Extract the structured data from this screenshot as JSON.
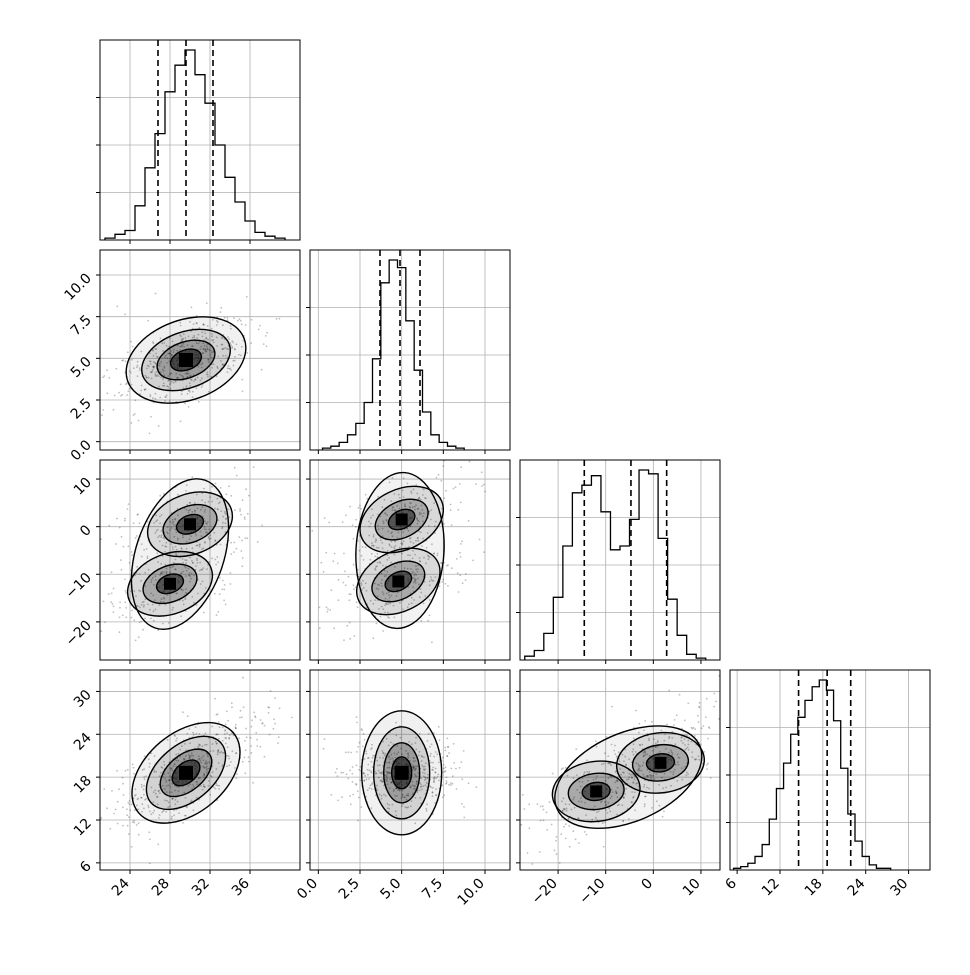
{
  "chart_data": {
    "type": "corner",
    "variables": [
      {
        "range": [
          21,
          41
        ],
        "ticks": [
          24,
          28,
          32,
          36
        ],
        "tick_labels": [
          "24",
          "28",
          "32",
          "36"
        ],
        "quantiles": [
          26.8,
          29.6,
          32.3
        ],
        "hist_bins": [
          22,
          23,
          24,
          25,
          26,
          27,
          28,
          29,
          30,
          31,
          32,
          33,
          34,
          35,
          36,
          37,
          38,
          39
        ],
        "hist_values": [
          0.01,
          0.03,
          0.05,
          0.18,
          0.38,
          0.56,
          0.78,
          0.92,
          1.0,
          0.87,
          0.72,
          0.5,
          0.33,
          0.2,
          0.1,
          0.04,
          0.02,
          0.01
        ]
      },
      {
        "range": [
          -0.5,
          11.5
        ],
        "ticks": [
          0.0,
          2.5,
          5.0,
          7.5,
          10.0
        ],
        "tick_labels": [
          "0.0",
          "2.5",
          "5.0",
          "7.5",
          "10.0"
        ],
        "quantiles": [
          3.7,
          4.9,
          6.1
        ],
        "hist_bins": [
          0.5,
          1.0,
          1.5,
          2.0,
          2.5,
          3.0,
          3.5,
          4.0,
          4.5,
          5.0,
          5.5,
          6.0,
          6.5,
          7.0,
          7.5,
          8.0,
          8.5
        ],
        "hist_values": [
          0.01,
          0.02,
          0.04,
          0.08,
          0.14,
          0.25,
          0.48,
          0.88,
          1.0,
          0.96,
          0.68,
          0.42,
          0.2,
          0.08,
          0.04,
          0.02,
          0.01
        ]
      },
      {
        "range": [
          -28,
          14
        ],
        "ticks": [
          -20,
          -10,
          0,
          10
        ],
        "tick_labels": [
          "−20",
          "−10",
          "0",
          "10"
        ],
        "quantiles": [
          -14.5,
          -4.7,
          2.8
        ],
        "hist_bins": [
          -26,
          -24,
          -22,
          -20,
          -18,
          -16,
          -14,
          -12,
          -10,
          -8,
          -6,
          -4,
          -2,
          0,
          2,
          4,
          6,
          8,
          10
        ],
        "hist_values": [
          0.02,
          0.05,
          0.14,
          0.33,
          0.6,
          0.88,
          0.92,
          0.97,
          0.78,
          0.58,
          0.6,
          0.74,
          1.0,
          0.98,
          0.64,
          0.32,
          0.13,
          0.03,
          0.01
        ]
      },
      {
        "range": [
          5,
          33
        ],
        "ticks": [
          6,
          12,
          18,
          24,
          30
        ],
        "tick_labels": [
          "6",
          "12",
          "18",
          "24",
          "30"
        ],
        "quantiles": [
          14.6,
          18.6,
          21.9
        ],
        "hist_bins": [
          6,
          7,
          8,
          9,
          10,
          11,
          12,
          13,
          14,
          15,
          16,
          17,
          18,
          19,
          20,
          21,
          22,
          23,
          24,
          25,
          26,
          27
        ],
        "hist_values": [
          0.01,
          0.02,
          0.04,
          0.08,
          0.15,
          0.3,
          0.48,
          0.63,
          0.8,
          0.9,
          1.0,
          1.08,
          1.12,
          1.06,
          0.88,
          0.6,
          0.33,
          0.17,
          0.08,
          0.03,
          0.01,
          0.01
        ]
      }
    ],
    "pairs": [
      {
        "row": 1,
        "col": 0,
        "mode_centers": [
          [
            29.6,
            4.9
          ]
        ]
      },
      {
        "row": 2,
        "col": 0,
        "mode_centers": [
          [
            30.0,
            0.5
          ],
          [
            28.0,
            -12.0
          ]
        ]
      },
      {
        "row": 2,
        "col": 1,
        "mode_centers": [
          [
            5.0,
            1.5
          ],
          [
            4.8,
            -11.5
          ]
        ]
      },
      {
        "row": 3,
        "col": 0,
        "mode_centers": [
          [
            29.6,
            18.6
          ]
        ]
      },
      {
        "row": 3,
        "col": 1,
        "mode_centers": [
          [
            5.0,
            18.6
          ]
        ]
      },
      {
        "row": 3,
        "col": 2,
        "mode_centers": [
          [
            1.5,
            20.0
          ],
          [
            -12.0,
            16.0
          ]
        ]
      }
    ],
    "grid": true,
    "line_color": "#000000",
    "fill_color": "#000000"
  }
}
